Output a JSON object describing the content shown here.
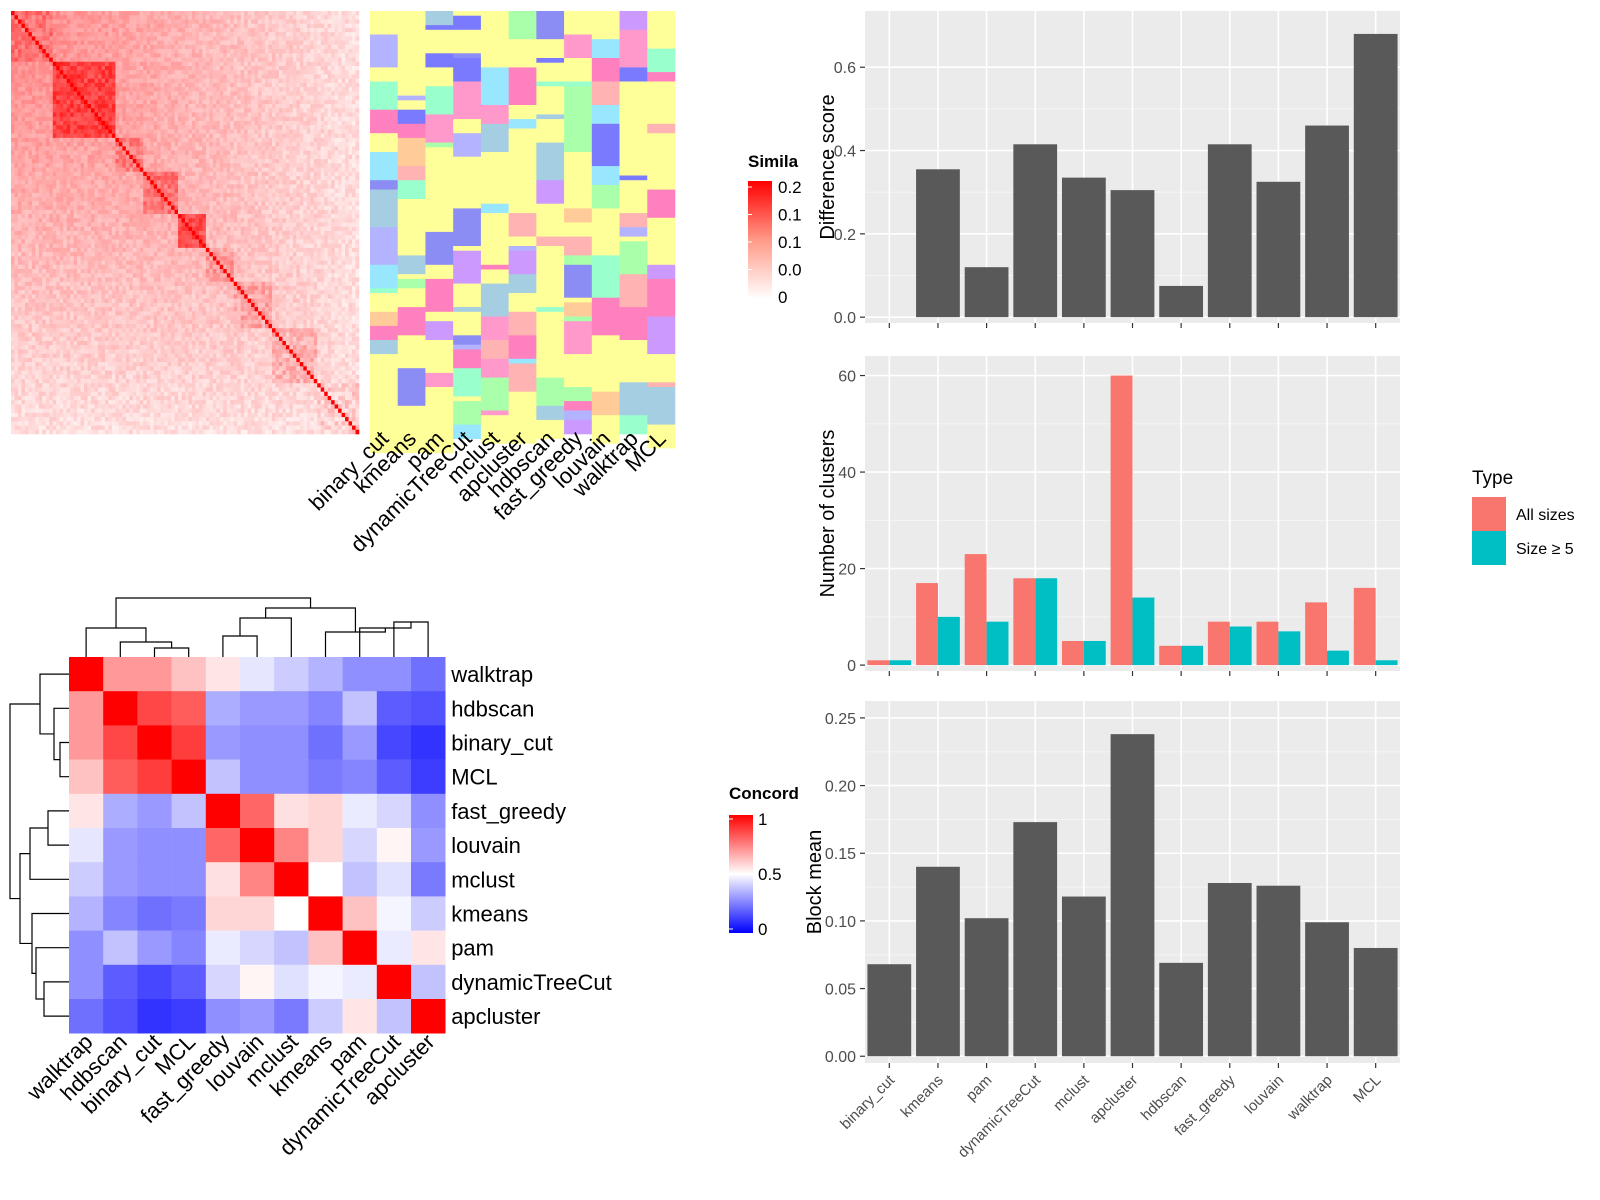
{
  "similarity_heatmap": {
    "legend_title": "Simila",
    "legend_ticks": [
      "0.2",
      "0.1",
      "0.1",
      "0.0",
      "0"
    ],
    "methods": [
      "binary_cut",
      "kmeans",
      "pam",
      "dynamicTreeCut",
      "mclust",
      "apcluster",
      "hdbscan",
      "fast_greedy",
      "louvain",
      "walktrap",
      "MCL"
    ]
  },
  "concordance_heatmap": {
    "legend_title": "Concord",
    "legend_ticks": [
      "1",
      "0.5",
      "0"
    ],
    "order": [
      "walktrap",
      "hdbscan",
      "binary_cut",
      "MCL",
      "fast_greedy",
      "louvain",
      "mclust",
      "kmeans",
      "pam",
      "dynamicTreeCut",
      "apcluster"
    ],
    "matrix": [
      [
        1.0,
        0.7,
        0.7,
        0.62,
        0.55,
        0.45,
        0.4,
        0.35,
        0.28,
        0.28,
        0.22
      ],
      [
        0.7,
        1.0,
        0.86,
        0.82,
        0.34,
        0.3,
        0.3,
        0.26,
        0.38,
        0.18,
        0.16
      ],
      [
        0.7,
        0.86,
        1.0,
        0.88,
        0.3,
        0.28,
        0.28,
        0.22,
        0.3,
        0.14,
        0.1
      ],
      [
        0.62,
        0.82,
        0.88,
        1.0,
        0.38,
        0.28,
        0.28,
        0.24,
        0.26,
        0.18,
        0.12
      ],
      [
        0.55,
        0.34,
        0.3,
        0.38,
        1.0,
        0.8,
        0.56,
        0.58,
        0.46,
        0.42,
        0.28
      ],
      [
        0.45,
        0.3,
        0.28,
        0.28,
        0.8,
        1.0,
        0.74,
        0.58,
        0.42,
        0.52,
        0.3
      ],
      [
        0.4,
        0.3,
        0.28,
        0.28,
        0.56,
        0.74,
        1.0,
        0.5,
        0.38,
        0.44,
        0.24
      ],
      [
        0.35,
        0.26,
        0.22,
        0.24,
        0.58,
        0.58,
        0.5,
        1.0,
        0.62,
        0.48,
        0.4
      ],
      [
        0.28,
        0.38,
        0.3,
        0.26,
        0.46,
        0.42,
        0.38,
        0.62,
        1.0,
        0.46,
        0.55
      ],
      [
        0.28,
        0.18,
        0.14,
        0.18,
        0.42,
        0.52,
        0.44,
        0.48,
        0.46,
        1.0,
        0.38
      ],
      [
        0.22,
        0.16,
        0.1,
        0.12,
        0.28,
        0.3,
        0.24,
        0.4,
        0.55,
        0.38,
        1.0
      ]
    ]
  },
  "chart_data": [
    {
      "type": "bar",
      "categories": [
        "binary_cut",
        "kmeans",
        "pam",
        "dynamicTreeCut",
        "mclust",
        "apcluster",
        "hdbscan",
        "fast_greedy",
        "louvain",
        "walktrap",
        "MCL"
      ],
      "values": [
        0,
        0.355,
        0.12,
        0.415,
        0.335,
        0.305,
        0.075,
        0.415,
        0.325,
        0.46,
        0.68
      ],
      "title": "",
      "xlabel": "",
      "ylabel": "Difference score",
      "ylim": [
        0,
        0.7
      ],
      "yticks": [
        "0.0",
        "0.2",
        "0.4",
        "0.6"
      ],
      "ytick_values": [
        0,
        0.2,
        0.4,
        0.6
      ],
      "grid": true,
      "bar_color": "#595959"
    },
    {
      "type": "bar",
      "categories": [
        "binary_cut",
        "kmeans",
        "pam",
        "dynamicTreeCut",
        "mclust",
        "apcluster",
        "hdbscan",
        "fast_greedy",
        "louvain",
        "walktrap",
        "MCL"
      ],
      "series": [
        {
          "name": "All sizes",
          "color": "#F8766D",
          "values": [
            1,
            17,
            23,
            18,
            5,
            60,
            4,
            9,
            9,
            13,
            16
          ]
        },
        {
          "name": "Size ≥ 5",
          "color": "#00BFC4",
          "values": [
            1,
            10,
            9,
            18,
            5,
            14,
            4,
            8,
            7,
            3,
            1
          ]
        }
      ],
      "title": "",
      "xlabel": "",
      "ylabel": "Number of clusters",
      "ylim": [
        0,
        61
      ],
      "yticks": [
        "0",
        "20",
        "40",
        "60"
      ],
      "ytick_values": [
        0,
        20,
        40,
        60
      ],
      "grid": true,
      "legend_title": "Type",
      "legend_position": "right"
    },
    {
      "type": "bar",
      "categories": [
        "binary_cut",
        "kmeans",
        "pam",
        "dynamicTreeCut",
        "mclust",
        "apcluster",
        "hdbscan",
        "fast_greedy",
        "louvain",
        "walktrap",
        "MCL"
      ],
      "values": [
        0.068,
        0.14,
        0.102,
        0.173,
        0.118,
        0.238,
        0.069,
        0.128,
        0.126,
        0.099,
        0.08
      ],
      "title": "",
      "xlabel": "",
      "ylabel": "Block mean",
      "ylim": [
        0,
        0.25
      ],
      "yticks": [
        "0.00",
        "0.05",
        "0.10",
        "0.15",
        "0.20",
        "0.25"
      ],
      "ytick_values": [
        0,
        0.05,
        0.1,
        0.15,
        0.2,
        0.25
      ],
      "grid": true,
      "bar_color": "#595959"
    }
  ]
}
